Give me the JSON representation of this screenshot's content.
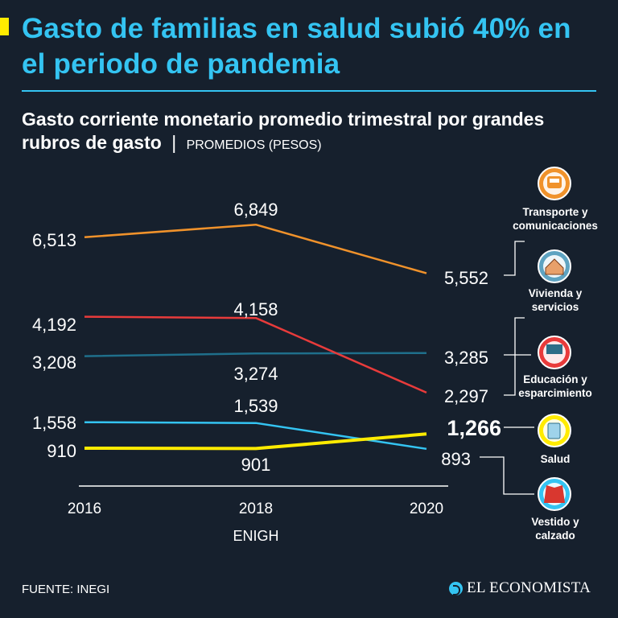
{
  "header": {
    "title": "Gasto de familias en salud subió 40% en el periodo de pandemia",
    "subtitle_main": "Gasto corriente monetario promedio trimestral por grandes rubros de gasto",
    "subtitle_separator": "|",
    "subtitle_unit": "PROMEDIOS (PESOS)"
  },
  "chart_data": {
    "type": "line",
    "title": "Gasto corriente monetario promedio trimestral por grandes rubros de gasto",
    "ylabel": "PROMEDIOS (PESOS)",
    "xlabel": "ENIGH",
    "x": [
      "2016",
      "2018",
      "2020"
    ],
    "ylim": [
      0,
      7200
    ],
    "series": [
      {
        "name": "Transporte y comunicaciones",
        "color": "#f0922b",
        "values": [
          6513,
          6849,
          5552
        ],
        "labels": [
          "6,513",
          "6,849",
          "5,552"
        ],
        "icon": "train-icon"
      },
      {
        "name": "Vivienda y servicios",
        "color": "#e83b3b",
        "values": [
          4192,
          4158,
          2297
        ],
        "labels": [
          "4,192",
          "4,158",
          "2,297"
        ],
        "icon": "house-icon"
      },
      {
        "name": "Educación y esparcimiento",
        "color": "#1f6f8b",
        "values": [
          3208,
          3274,
          3285
        ],
        "labels": [
          "3,208",
          "3,274",
          "3,285"
        ],
        "icon": "classroom-icon"
      },
      {
        "name": "Salud",
        "color": "#ffeb00",
        "values": [
          910,
          901,
          1266
        ],
        "labels": [
          "910",
          "901",
          "1,266"
        ],
        "icon": "clipboard-icon"
      },
      {
        "name": "Vestido y calzado",
        "color": "#34c4f2",
        "values": [
          1558,
          1539,
          893
        ],
        "labels": [
          "1,558",
          "1,539",
          "893"
        ],
        "icon": "clothes-icon"
      }
    ]
  },
  "footer": {
    "source": "FUENTE: INEGI",
    "brand": "EL ECONOMISTA"
  }
}
